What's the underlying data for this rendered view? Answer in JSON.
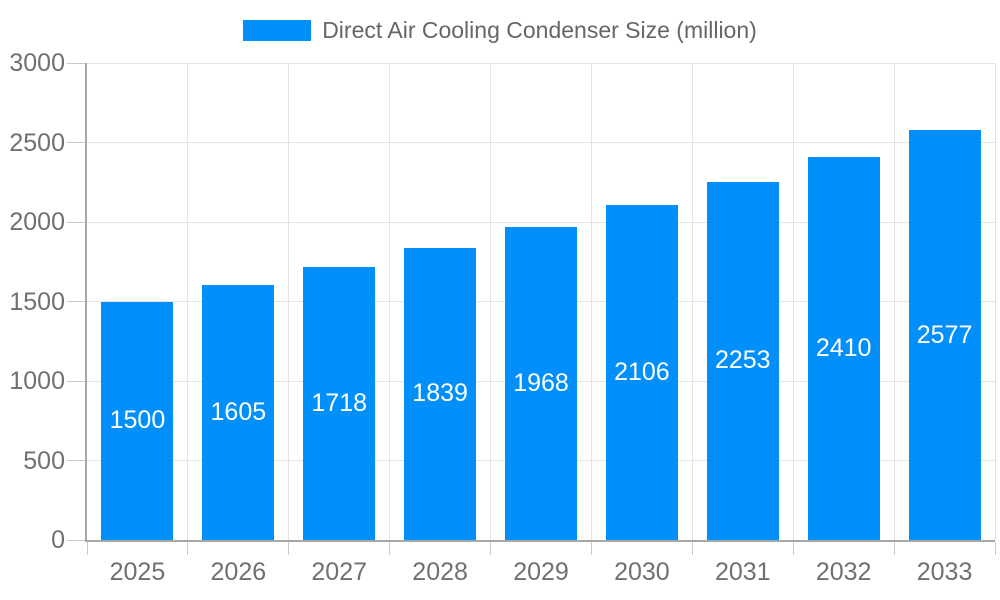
{
  "colors": {
    "bar": "#008FFB",
    "bar_value_text": "#FFFFFF",
    "axis_line": "#A6A6A6",
    "tick_line": "#C9C9C9",
    "grid_line": "#E3E3E3",
    "axis_label_text": "#707070",
    "legend_text": "#666666",
    "background": "#FFFFFF"
  },
  "chart_data": {
    "type": "bar",
    "title": "Direct Air Cooling Condenser Size (million)",
    "legend": [
      "Direct Air Cooling Condenser Size (million)"
    ],
    "legend_position": "top-center",
    "categories": [
      "2025",
      "2026",
      "2027",
      "2028",
      "2029",
      "2030",
      "2031",
      "2032",
      "2033"
    ],
    "values": [
      1500,
      1605,
      1718,
      1839,
      1968,
      2106,
      2253,
      2410,
      2577
    ],
    "xlabel": "",
    "ylabel": "",
    "ylim": [
      0,
      3000
    ],
    "yticks": [
      0,
      500,
      1000,
      1500,
      2000,
      2500,
      3000
    ],
    "grid": true,
    "data_labels": {
      "position": "inside-center",
      "color": "#FFFFFF"
    }
  }
}
